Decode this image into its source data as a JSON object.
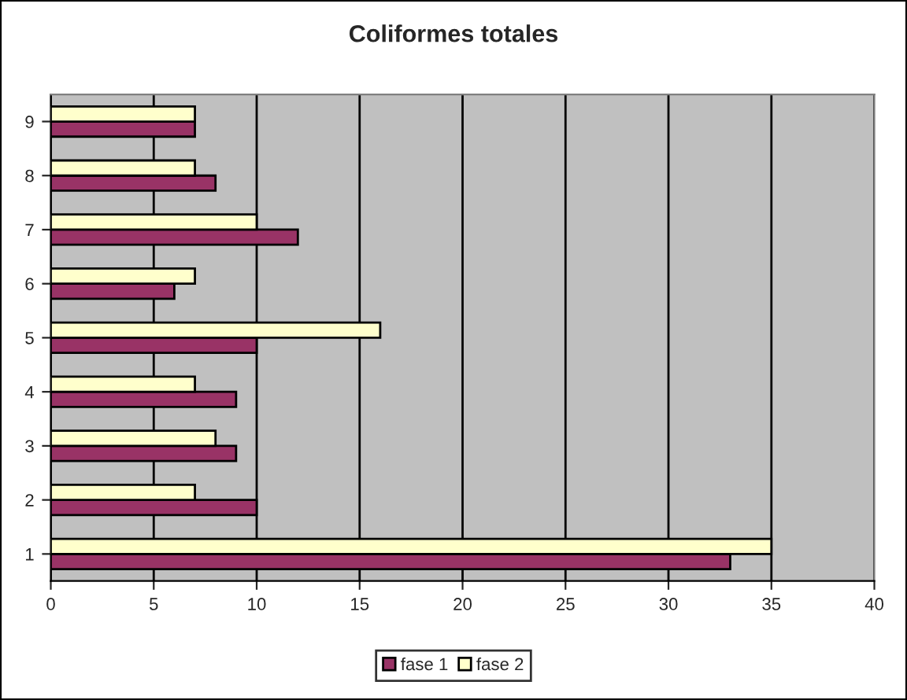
{
  "chart_data": {
    "type": "bar",
    "orientation": "horizontal",
    "title": "Coliformes totales",
    "categories": [
      "9",
      "8",
      "7",
      "6",
      "5",
      "4",
      "3",
      "2",
      "1"
    ],
    "series": [
      {
        "name": "fase 1",
        "color": "#993366",
        "values": [
          7,
          8,
          12,
          6,
          10,
          9,
          9,
          10,
          33
        ]
      },
      {
        "name": "fase 2",
        "color": "#ffffcc",
        "values": [
          7,
          7,
          10,
          7,
          16,
          7,
          8,
          7,
          35
        ]
      }
    ],
    "xlim": [
      0,
      40
    ],
    "xticks": [
      0,
      5,
      10,
      15,
      20,
      25,
      30,
      35,
      40
    ],
    "grid": "x",
    "legend": "bottom"
  }
}
